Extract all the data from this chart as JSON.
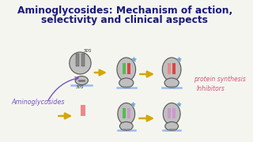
{
  "title_line1": "Aminoglycosides: Mechanism of action,",
  "title_line2": "selectivity and clinical aspects",
  "title_color": "#1a1a7a",
  "bg_color": "#f5f5f0",
  "left_label": "Aminoglycosides",
  "right_label1": "protein synthesis",
  "right_label2": "Inhibitors",
  "left_label_color": "#7755bb",
  "right_label_color": "#d05878",
  "arrow_color": "#d4a800",
  "ribosome_fill": "#c0bfc0",
  "ribosome_edge": "#555555",
  "mrna_color": "#99bbee",
  "bar_green": "#55bb55",
  "bar_red": "#dd4444",
  "bar_pink": "#ee8888",
  "bar_lavender": "#cc99cc",
  "star_color": "#77aacc",
  "dot_color": "#888888"
}
